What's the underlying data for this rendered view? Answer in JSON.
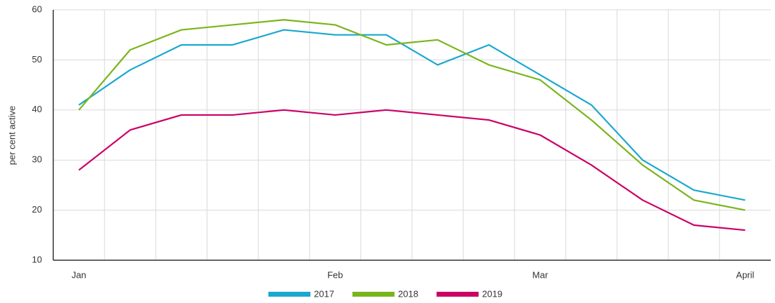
{
  "chart_data": {
    "type": "line",
    "y_label": "per cent active",
    "categories": [
      "Jan",
      null,
      null,
      null,
      null,
      "Feb",
      null,
      null,
      null,
      "Mar",
      null,
      null,
      null,
      "April"
    ],
    "series": [
      {
        "name": "2017",
        "color": "#1aa8cf",
        "values": [
          41,
          48,
          53,
          53,
          56,
          55,
          55,
          49,
          53,
          47,
          41,
          30,
          24,
          22
        ]
      },
      {
        "name": "2018",
        "color": "#7ab51d",
        "values": [
          40,
          52,
          56,
          57,
          58,
          57,
          53,
          54,
          49,
          46,
          38,
          29,
          22,
          20
        ]
      },
      {
        "name": "2019",
        "color": "#cc0066",
        "values": [
          28,
          36,
          39,
          39,
          40,
          39,
          40,
          39,
          38,
          35,
          29,
          22,
          17,
          16
        ]
      }
    ],
    "ylim": [
      10,
      60
    ],
    "yticks": [
      10,
      20,
      30,
      40,
      50,
      60
    ],
    "grid": true
  }
}
